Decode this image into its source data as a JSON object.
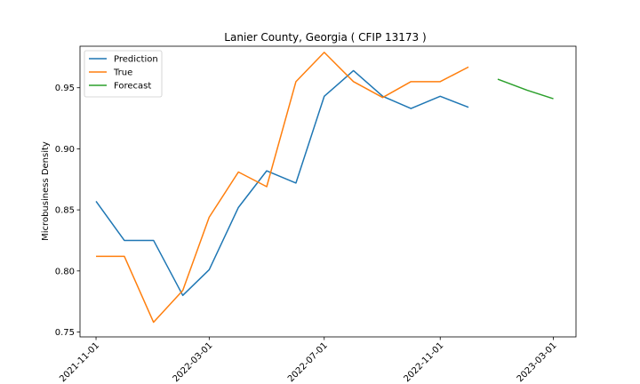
{
  "chart_data": {
    "type": "line",
    "title": "Lanier County, Georgia ( CFIP 13173 )",
    "xlabel": "",
    "ylabel": "Microbusiness Density",
    "x_type": "date",
    "xlim": [
      "2021-10-15",
      "2023-03-25"
    ],
    "ylim": [
      0.746,
      0.984
    ],
    "xticks": [
      "2021-11-01",
      "2022-03-01",
      "2022-07-01",
      "2022-11-01",
      "2023-03-01"
    ],
    "yticks": [
      0.75,
      0.8,
      0.85,
      0.9,
      0.95
    ],
    "ytick_labels": [
      "0.75",
      "0.80",
      "0.85",
      "0.90",
      "0.95"
    ],
    "grid": false,
    "legend_position": "top-left",
    "series": [
      {
        "name": "Prediction",
        "color": "#1f77b4",
        "x": [
          "2021-11-01",
          "2021-12-01",
          "2022-01-01",
          "2022-02-01",
          "2022-03-01",
          "2022-04-01",
          "2022-05-01",
          "2022-06-01",
          "2022-07-01",
          "2022-08-01",
          "2022-09-01",
          "2022-10-01",
          "2022-11-01",
          "2022-12-01"
        ],
        "y": [
          0.857,
          0.825,
          0.825,
          0.78,
          0.801,
          0.852,
          0.882,
          0.872,
          0.943,
          0.964,
          0.943,
          0.933,
          0.943,
          0.934
        ]
      },
      {
        "name": "True",
        "color": "#ff7f0e",
        "x": [
          "2021-11-01",
          "2021-12-01",
          "2022-01-01",
          "2022-02-01",
          "2022-03-01",
          "2022-04-01",
          "2022-05-01",
          "2022-06-01",
          "2022-07-01",
          "2022-08-01",
          "2022-09-01",
          "2022-10-01",
          "2022-11-01",
          "2022-12-01"
        ],
        "y": [
          0.812,
          0.812,
          0.758,
          0.784,
          0.844,
          0.881,
          0.869,
          0.955,
          0.979,
          0.955,
          0.942,
          0.955,
          0.955,
          0.967
        ]
      },
      {
        "name": "Forecast",
        "color": "#2ca02c",
        "x": [
          "2023-01-01",
          "2023-02-01",
          "2023-03-01"
        ],
        "y": [
          0.957,
          0.948,
          0.941
        ]
      }
    ]
  }
}
